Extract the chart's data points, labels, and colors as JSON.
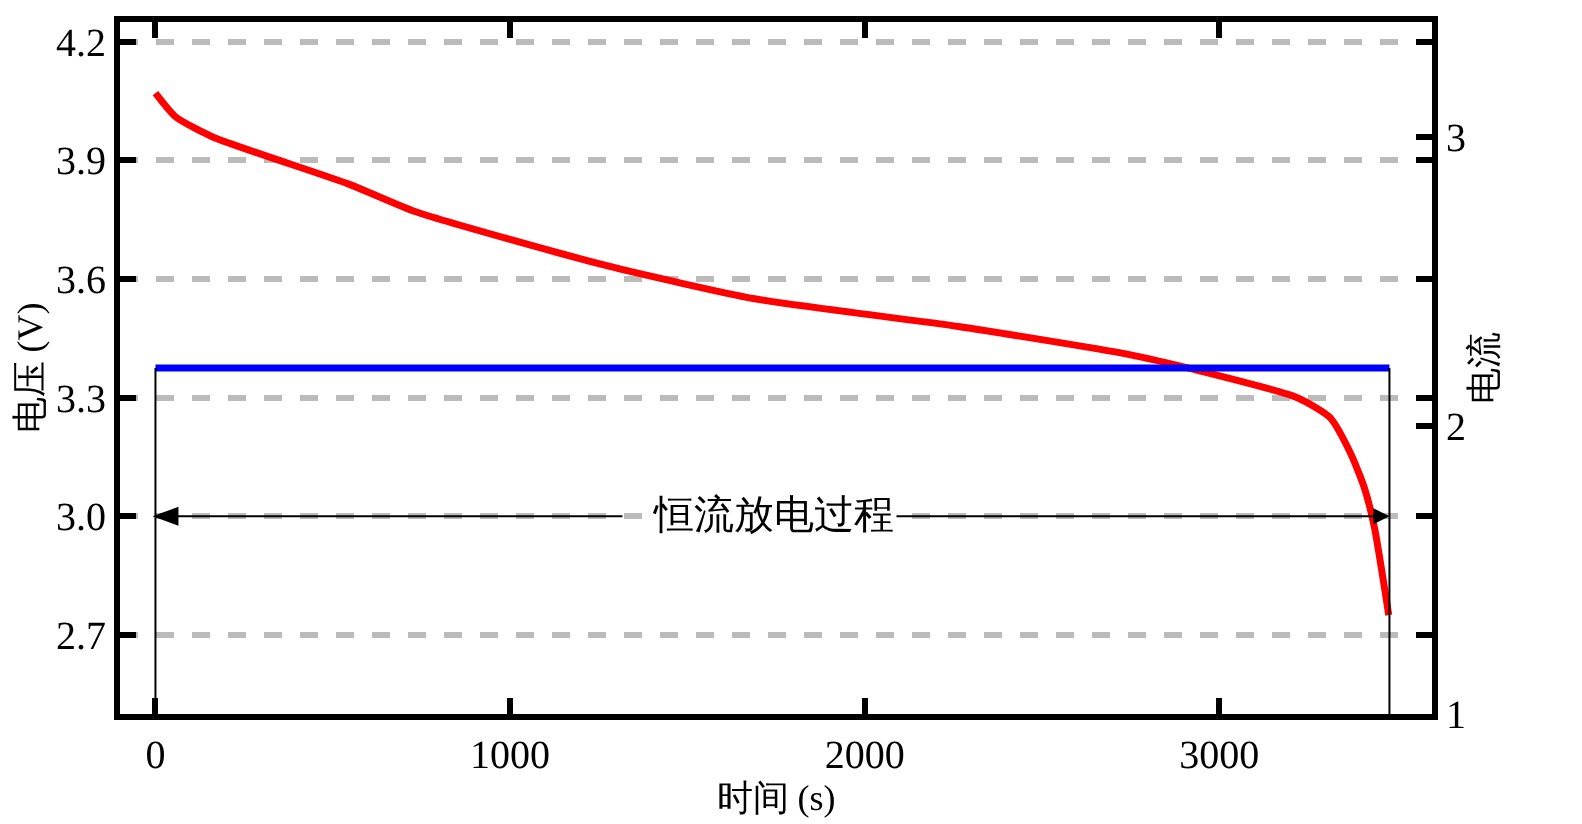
{
  "chart_data": {
    "type": "line",
    "xlabel": "时间 (s)",
    "ylabel": "电压 (V)",
    "y2label": "电流",
    "xlim": [
      -100,
      3600
    ],
    "xticks": [
      0,
      1000,
      2000,
      3000
    ],
    "ylim": [
      2.5,
      4.25
    ],
    "yticks": [
      2.7,
      {
        "value": 3,
        "label": "3.0"
      },
      3.3,
      3.6,
      3.9,
      4.2
    ],
    "y2lim": [
      1,
      3.4
    ],
    "y2ticks": [
      1,
      2,
      3
    ],
    "grid": "y",
    "marker": "none",
    "line_style": "solid",
    "series": [
      {
        "color": "#ff0000",
        "x": [
          0,
          57,
          160,
          545,
          734,
          1000,
          1290,
          1690,
          2264,
          2740,
          2934,
          3220,
          3312,
          3370,
          3410,
          3438,
          3478
        ],
        "values": [
          4.07,
          4.01,
          3.96,
          3.84,
          3.77,
          3.7,
          3.63,
          3.55,
          3.48,
          3.41,
          3.37,
          3.3,
          3.25,
          3.16,
          3.07,
          2.97,
          2.75
        ]
      },
      {
        "color": "#0000ff",
        "axis": "y2",
        "x": [
          0,
          3480
        ],
        "values": [
          2.2,
          2.2
        ]
      }
    ],
    "ref_lines": [
      {
        "axis": "x",
        "value": 0,
        "color": "#000000"
      },
      {
        "axis": "x",
        "value": 3480,
        "color": "#000000"
      }
    ],
    "annotations": [
      {
        "text": "恒流放电过程",
        "x": 3480,
        "y": 3.0
      }
    ]
  }
}
